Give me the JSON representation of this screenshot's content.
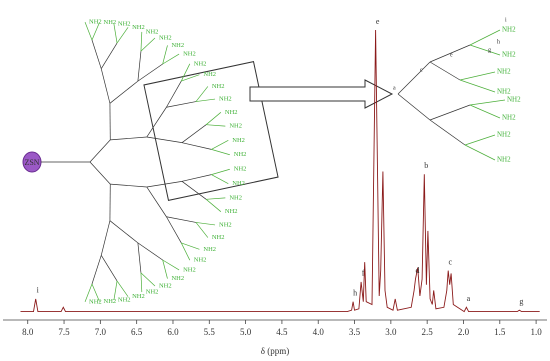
{
  "chart_data": {
    "type": "line",
    "x_label": "δ (ppm)",
    "xlim": [
      8.12,
      0.95
    ],
    "ylim": [
      0,
      100
    ],
    "xticks": [
      {
        "value": 8,
        "label": "8.0"
      },
      {
        "value": 7.5,
        "label": "7.5"
      },
      {
        "value": 7,
        "label": "7.0"
      },
      {
        "value": 6.5,
        "label": "6.5"
      },
      {
        "value": 6,
        "label": "6.0"
      },
      {
        "value": 5.5,
        "label": "5.5"
      },
      {
        "value": 5,
        "label": "5.0"
      },
      {
        "value": 4.5,
        "label": "4.5"
      },
      {
        "value": 4,
        "label": "4.0"
      },
      {
        "value": 3.5,
        "label": "3.5"
      },
      {
        "value": 3,
        "label": "3.0"
      },
      {
        "value": 2.5,
        "label": "2.5"
      },
      {
        "value": 2,
        "label": "2.0"
      },
      {
        "value": 1.5,
        "label": "1.5"
      },
      {
        "value": 1,
        "label": "1.0"
      }
    ],
    "x": [
      8.1,
      7.92,
      7.89,
      7.86,
      7.54,
      7.51,
      7.48,
      3.6,
      3.54,
      3.52,
      3.5,
      3.44,
      3.41,
      3.38,
      3.36,
      3.34,
      3.26,
      3.21,
      3.16,
      3.14,
      3.11,
      3.08,
      3.05,
      2.97,
      2.94,
      2.91,
      2.72,
      2.68,
      2.66,
      2.63,
      2.6,
      2.57,
      2.54,
      2.51,
      2.49,
      2.46,
      2.43,
      2.41,
      2.38,
      2.27,
      2.23,
      2.21,
      2.19,
      2.17,
      2.14,
      1.99,
      1.96,
      1.93,
      1.26,
      1.23,
      1.2,
      0.95
    ],
    "series": [
      {
        "color": "#8b1a1a",
        "values": [
          0.5,
          0.5,
          5,
          0.5,
          0.5,
          2,
          0.5,
          0.5,
          1,
          4,
          1,
          1.5,
          11,
          4,
          18,
          4,
          3,
          100,
          6,
          15,
          50,
          8,
          2,
          1,
          5,
          1,
          2,
          8,
          12,
          16,
          6,
          12,
          49,
          10,
          29,
          5,
          3,
          8,
          1.5,
          2,
          8,
          15,
          10,
          14,
          3,
          0.5,
          2,
          0.5,
          0.5,
          1,
          0.5,
          0.5
        ]
      }
    ],
    "annotations": [
      {
        "text": "i",
        "x": 7.89,
        "y": 5
      },
      {
        "text": "h",
        "x": 3.52,
        "y": 4
      },
      {
        "text": "f",
        "x": 3.41,
        "y": 11
      },
      {
        "text": "e",
        "x": 3.21,
        "y": 100
      },
      {
        "text": "d",
        "x": 2.66,
        "y": 12
      },
      {
        "text": "b",
        "x": 2.54,
        "y": 49
      },
      {
        "text": "c",
        "x": 2.21,
        "y": 15
      },
      {
        "text": "a",
        "x": 1.96,
        "y": 2
      },
      {
        "text": "g",
        "x": 1.23,
        "y": 1
      }
    ]
  },
  "structure": {
    "core": "ZSN",
    "terminal": "NH2",
    "fragment_labels": [
      "i",
      "h",
      "g",
      "e",
      "c",
      "a"
    ]
  }
}
